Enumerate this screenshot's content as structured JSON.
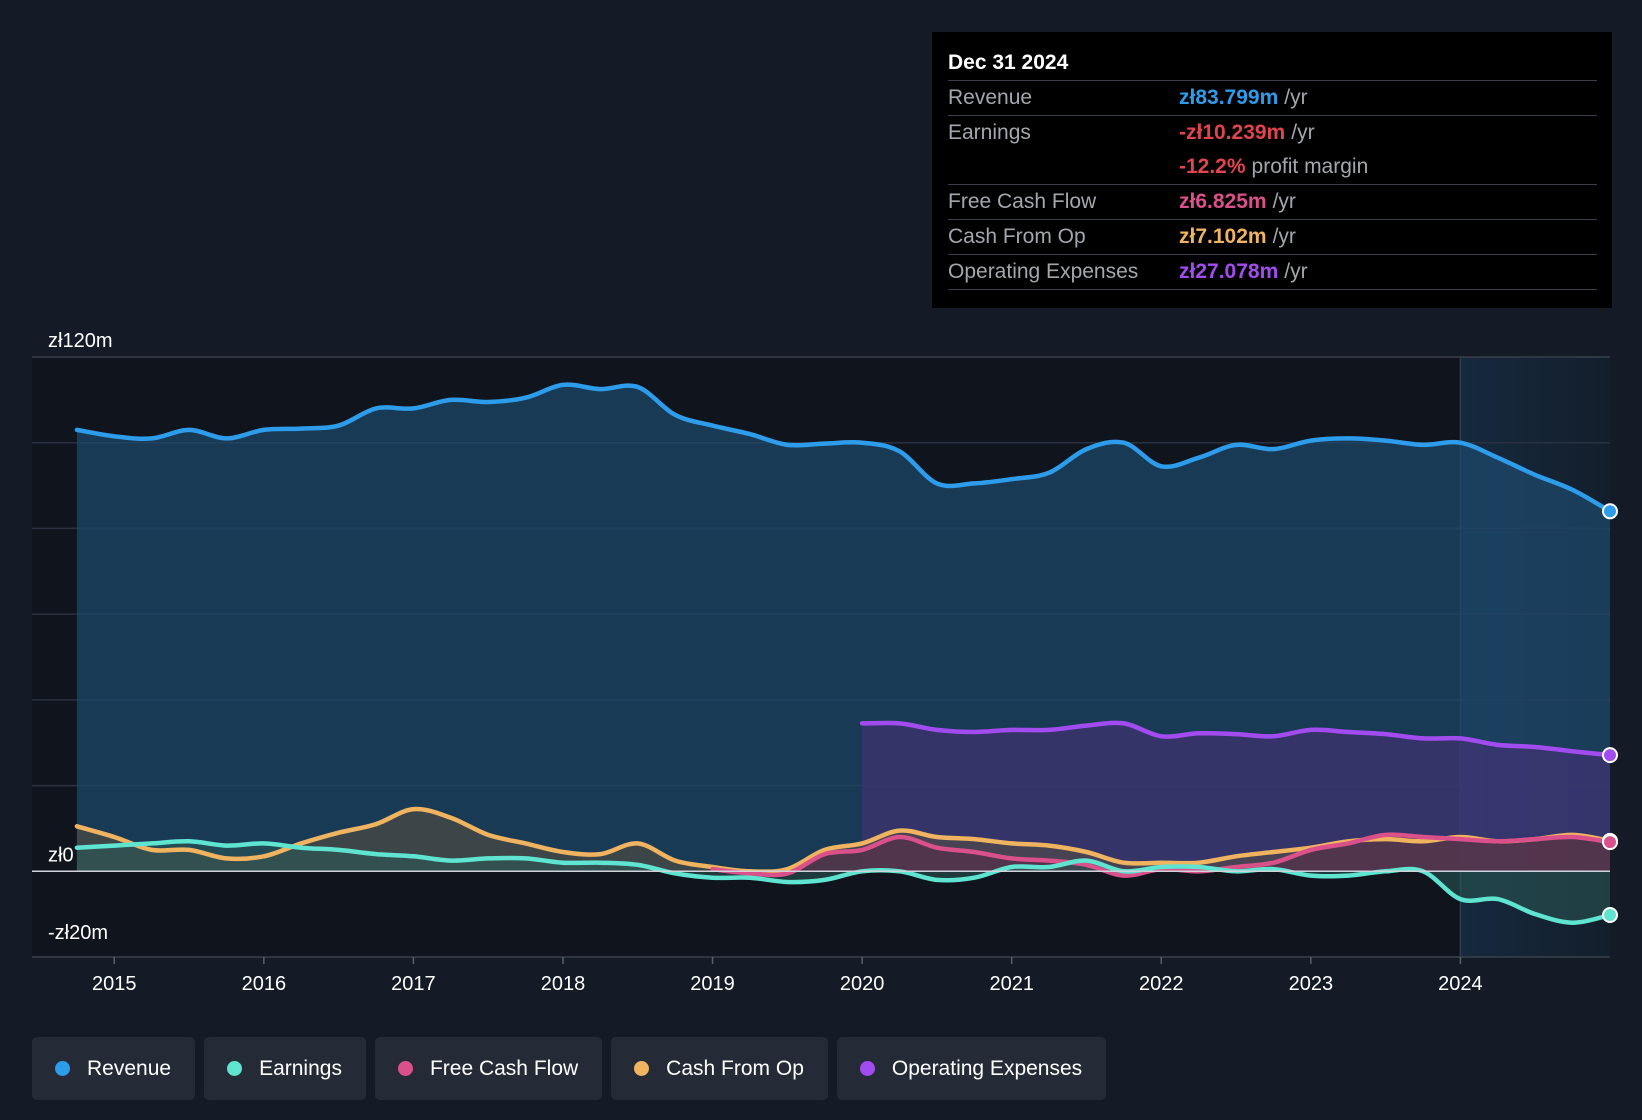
{
  "tooltip": {
    "date": "Dec 31 2024",
    "rows": [
      {
        "label": "Revenue",
        "value": "zł83.799m",
        "unit": "/yr",
        "color": "#2d9cea"
      },
      {
        "label": "Earnings",
        "value": "-zł10.239m",
        "unit": "/yr",
        "color": "#e2444d"
      },
      {
        "label": "",
        "value": "-12.2%",
        "unit": "profit margin",
        "color": "#e2444d"
      },
      {
        "label": "Free Cash Flow",
        "value": "zł6.825m",
        "unit": "/yr",
        "color": "#d9508a"
      },
      {
        "label": "Cash From Op",
        "value": "zł7.102m",
        "unit": "/yr",
        "color": "#f0b35f"
      },
      {
        "label": "Operating Expenses",
        "value": "zł27.078m",
        "unit": "/yr",
        "color": "#a24cf0"
      }
    ]
  },
  "legend": [
    {
      "label": "Revenue",
      "color": "#2d9cea"
    },
    {
      "label": "Earnings",
      "color": "#5ee4d0"
    },
    {
      "label": "Free Cash Flow",
      "color": "#d9508a"
    },
    {
      "label": "Cash From Op",
      "color": "#f0b35f"
    },
    {
      "label": "Operating Expenses",
      "color": "#a24cf0"
    }
  ],
  "chart_data": {
    "type": "line",
    "title": "",
    "xlabel": "",
    "ylabel": "",
    "ylim": [
      -20,
      120
    ],
    "xlim": [
      2014.45,
      2025.0
    ],
    "y_tick_labels": [
      {
        "value": 120,
        "label": "zł120m"
      },
      {
        "value": 0,
        "label": "zł0"
      },
      {
        "value": -20,
        "label": "-zł20m"
      }
    ],
    "x_tick_labels": [
      "2015",
      "2016",
      "2017",
      "2018",
      "2019",
      "2020",
      "2021",
      "2022",
      "2023",
      "2024"
    ],
    "forecast_start": 2024.0,
    "series": [
      {
        "name": "Revenue",
        "color": "#2d9cea",
        "fill": "#1e4a6e",
        "x": [
          2014.75,
          2015.0,
          2015.25,
          2015.5,
          2015.75,
          2016.0,
          2016.25,
          2016.5,
          2016.75,
          2017.0,
          2017.25,
          2017.5,
          2017.75,
          2018.0,
          2018.25,
          2018.5,
          2018.75,
          2019.0,
          2019.25,
          2019.5,
          2019.75,
          2020.0,
          2020.25,
          2020.5,
          2020.75,
          2021.0,
          2021.25,
          2021.5,
          2021.75,
          2022.0,
          2022.25,
          2022.5,
          2022.75,
          2023.0,
          2023.25,
          2023.5,
          2023.75,
          2024.0,
          2024.25,
          2024.5,
          2024.75,
          2025.0
        ],
        "values": [
          103,
          101.5,
          101,
          103,
          101,
          103,
          103.3,
          104,
          108,
          108,
          110,
          109.5,
          110.5,
          113.5,
          112.5,
          113,
          106.5,
          104,
          102,
          99.5,
          99.8,
          100,
          98,
          90.5,
          90.5,
          91.5,
          93,
          98.5,
          100,
          94.5,
          96.5,
          99.5,
          98.5,
          100.5,
          101,
          100.5,
          99.5,
          100,
          96.5,
          92.5,
          89,
          84
        ]
      },
      {
        "name": "Operating Expenses",
        "color": "#a24cf0",
        "fill": "#4a2f7a",
        "x": [
          2020.0,
          2020.25,
          2020.5,
          2020.75,
          2021.0,
          2021.25,
          2021.5,
          2021.75,
          2022.0,
          2022.25,
          2022.5,
          2022.75,
          2023.0,
          2023.25,
          2023.5,
          2023.75,
          2024.0,
          2024.25,
          2024.5,
          2024.75,
          2025.0
        ],
        "values": [
          34.5,
          34.5,
          33,
          32.5,
          33,
          33,
          34,
          34.5,
          31.5,
          32.2,
          32,
          31.5,
          33,
          32.5,
          32,
          31,
          31,
          29.5,
          29,
          28,
          27.1
        ]
      },
      {
        "name": "Cash From Op",
        "color": "#f0b35f",
        "fill": "#5a5040",
        "x": [
          2014.75,
          2015.0,
          2015.25,
          2015.5,
          2015.75,
          2016.0,
          2016.25,
          2016.5,
          2016.75,
          2017.0,
          2017.25,
          2017.5,
          2017.75,
          2018.0,
          2018.25,
          2018.5,
          2018.75,
          2019.0,
          2019.25,
          2019.5,
          2019.75,
          2020.0,
          2020.25,
          2020.5,
          2020.75,
          2021.0,
          2021.25,
          2021.5,
          2021.75,
          2022.0,
          2022.25,
          2022.5,
          2022.75,
          2023.0,
          2023.25,
          2023.5,
          2023.75,
          2024.0,
          2024.25,
          2024.5,
          2024.75,
          2025.0
        ],
        "values": [
          10.5,
          8,
          5,
          5,
          3,
          3.5,
          6.5,
          9,
          11,
          14.5,
          12.5,
          8.5,
          6.5,
          4.5,
          4,
          6.5,
          2.5,
          1,
          0,
          0.5,
          5,
          6.5,
          9.5,
          8,
          7.5,
          6.5,
          6,
          4.5,
          2,
          2,
          2,
          3.5,
          4.5,
          5.5,
          7,
          7.5,
          7,
          8,
          7,
          7.5,
          8.5,
          7.1
        ]
      },
      {
        "name": "Free Cash Flow",
        "color": "#d9508a",
        "fill": "#5a2a48",
        "x": [
          2019.0,
          2019.25,
          2019.5,
          2019.75,
          2020.0,
          2020.25,
          2020.5,
          2020.75,
          2021.0,
          2021.25,
          2021.5,
          2021.75,
          2022.0,
          2022.25,
          2022.5,
          2022.75,
          2023.0,
          2023.25,
          2023.5,
          2023.75,
          2024.0,
          2024.25,
          2024.5,
          2024.75,
          2025.0
        ],
        "values": [
          0.5,
          -0.5,
          -0.5,
          4,
          5,
          8,
          5.5,
          4.5,
          3,
          2.5,
          1.5,
          -1,
          0.5,
          0,
          1,
          2,
          5,
          6.5,
          8.5,
          8,
          7.5,
          7,
          7.5,
          8,
          6.8
        ]
      },
      {
        "name": "Earnings",
        "color": "#5ee4d0",
        "fill": "#2a5a55",
        "x": [
          2014.75,
          2015.0,
          2015.25,
          2015.5,
          2015.75,
          2016.0,
          2016.25,
          2016.5,
          2016.75,
          2017.0,
          2017.25,
          2017.5,
          2017.75,
          2018.0,
          2018.25,
          2018.5,
          2018.75,
          2019.0,
          2019.25,
          2019.5,
          2019.75,
          2020.0,
          2020.25,
          2020.5,
          2020.75,
          2021.0,
          2021.25,
          2021.5,
          2021.75,
          2022.0,
          2022.25,
          2022.5,
          2022.75,
          2023.0,
          2023.25,
          2023.5,
          2023.75,
          2024.0,
          2024.25,
          2024.5,
          2024.75,
          2025.0
        ],
        "values": [
          5.5,
          6,
          6.5,
          7,
          6,
          6.5,
          5.5,
          5,
          4,
          3.5,
          2.5,
          3,
          3,
          2,
          2,
          1.5,
          -0.5,
          -1.5,
          -1.5,
          -2.5,
          -2,
          0,
          0,
          -2,
          -1.5,
          1,
          1,
          2.5,
          0,
          1,
          1,
          0,
          0.5,
          -1,
          -1,
          0,
          0,
          -6.5,
          -6.5,
          -10,
          -12,
          -10.2
        ]
      }
    ]
  }
}
